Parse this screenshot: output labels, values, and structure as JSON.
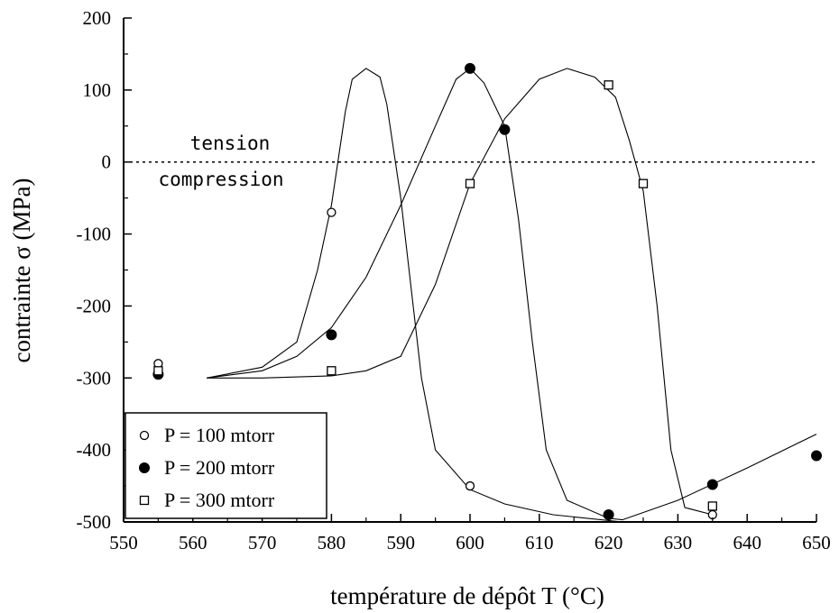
{
  "chart_data": {
    "type": "line",
    "title": "",
    "xlabel": "température de dépôt T (°C)",
    "ylabel": "contrainte σ (MPa)",
    "xlim": [
      550,
      650
    ],
    "ylim": [
      -500,
      200
    ],
    "xticks": [
      "550",
      "560",
      "570",
      "580",
      "590",
      "600",
      "610",
      "620",
      "630",
      "640",
      "650"
    ],
    "yticks": [
      "-500",
      "-400",
      "-300",
      "-200",
      "-100",
      "0",
      "100",
      "200"
    ],
    "grid": false,
    "legend_position": "bottom-left",
    "annotations": [
      {
        "text": "tension",
        "x": 589,
        "y": 27
      },
      {
        "text": "compression",
        "x": 589,
        "y": -23
      }
    ],
    "reference_line": {
      "y": 0,
      "style": "dotted"
    },
    "series": [
      {
        "name": "P = 100 mtorr",
        "marker": "open-circle",
        "points": [
          [
            555,
            -280
          ],
          [
            580,
            -70
          ],
          [
            600,
            -450
          ],
          [
            635,
            -490
          ]
        ],
        "fit": [
          [
            562,
            -300
          ],
          [
            570,
            -285
          ],
          [
            575,
            -250
          ],
          [
            578,
            -150
          ],
          [
            580,
            -60
          ],
          [
            582,
            70
          ],
          [
            583,
            115
          ],
          [
            585,
            130
          ],
          [
            587,
            118
          ],
          [
            588,
            80
          ],
          [
            590,
            -50
          ],
          [
            593,
            -300
          ],
          [
            595,
            -400
          ],
          [
            600,
            -455
          ],
          [
            605,
            -475
          ],
          [
            612,
            -490
          ],
          [
            622,
            -500
          ]
        ]
      },
      {
        "name": "P = 200 mtorr",
        "marker": "filled-circle",
        "points": [
          [
            555,
            -295
          ],
          [
            580,
            -240
          ],
          [
            600,
            130
          ],
          [
            605,
            45
          ],
          [
            620,
            -490
          ],
          [
            635,
            -448
          ],
          [
            650,
            -408
          ]
        ],
        "fit": [
          [
            562,
            -300
          ],
          [
            570,
            -290
          ],
          [
            575,
            -270
          ],
          [
            580,
            -230
          ],
          [
            585,
            -160
          ],
          [
            590,
            -60
          ],
          [
            595,
            50
          ],
          [
            598,
            115
          ],
          [
            600,
            130
          ],
          [
            602,
            110
          ],
          [
            605,
            50
          ],
          [
            607,
            -80
          ],
          [
            609,
            -250
          ],
          [
            611,
            -400
          ],
          [
            614,
            -470
          ],
          [
            620,
            -495
          ],
          [
            622,
            -497
          ],
          [
            630,
            -470
          ],
          [
            640,
            -425
          ],
          [
            650,
            -378
          ]
        ]
      },
      {
        "name": "P = 300 mtorr",
        "marker": "open-square",
        "points": [
          [
            555,
            -290
          ],
          [
            580,
            -290
          ],
          [
            600,
            -30
          ],
          [
            620,
            107
          ],
          [
            625,
            -30
          ],
          [
            635,
            -478
          ]
        ],
        "fit": [
          [
            562,
            -300
          ],
          [
            570,
            -300
          ],
          [
            580,
            -297
          ],
          [
            585,
            -290
          ],
          [
            590,
            -270
          ],
          [
            595,
            -170
          ],
          [
            600,
            -30
          ],
          [
            605,
            60
          ],
          [
            610,
            115
          ],
          [
            614,
            130
          ],
          [
            618,
            118
          ],
          [
            621,
            90
          ],
          [
            623,
            30
          ],
          [
            625,
            -40
          ],
          [
            627,
            -200
          ],
          [
            629,
            -400
          ],
          [
            631,
            -480
          ],
          [
            635,
            -490
          ]
        ]
      }
    ]
  }
}
